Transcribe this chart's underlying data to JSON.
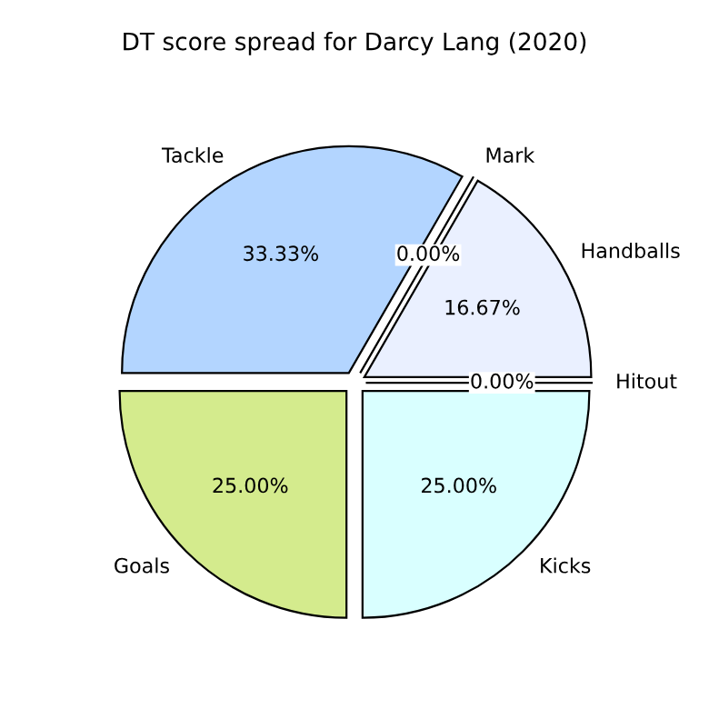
{
  "chart_data": {
    "type": "pie",
    "title": "DT score spread for Darcy Lang (2020)",
    "categories": [
      "Handballs",
      "Mark",
      "Tackle",
      "Goals",
      "Kicks",
      "Hitout"
    ],
    "values": [
      16.67,
      0,
      33.33,
      25,
      25,
      0
    ],
    "value_labels": [
      "16.67%",
      "0.00%",
      "33.33%",
      "25.00%",
      "25.00%",
      "0.00%"
    ],
    "colors": [
      "#eaf0ff",
      "#eaf0ff",
      "#b3d5ff",
      "#d4eb8d",
      "#d9ffff",
      "#eaf0ff"
    ]
  }
}
